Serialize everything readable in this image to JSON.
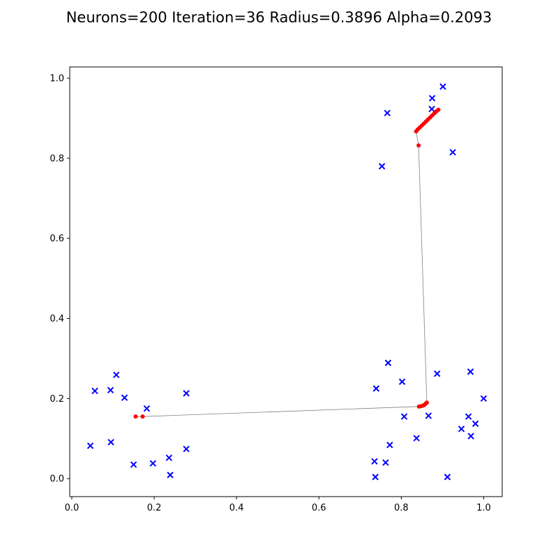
{
  "chart_data": {
    "type": "scatter",
    "title": "Neurons=200 Iteration=36 Radius=0.3896 Alpha=0.2093",
    "xlabel": "",
    "ylabel": "",
    "xlim": [
      -0.005,
      1.045
    ],
    "ylim": [
      -0.045,
      1.028
    ],
    "grid": false,
    "x_ticks": [
      {
        "value": 0.0,
        "label": "0.0"
      },
      {
        "value": 0.2,
        "label": "0.2"
      },
      {
        "value": 0.4,
        "label": "0.4"
      },
      {
        "value": 0.6,
        "label": "0.6"
      },
      {
        "value": 0.8,
        "label": "0.8"
      },
      {
        "value": 1.0,
        "label": "1.0"
      }
    ],
    "y_ticks": [
      {
        "value": 0.0,
        "label": "0.0"
      },
      {
        "value": 0.2,
        "label": "0.2"
      },
      {
        "value": 0.4,
        "label": "0.4"
      },
      {
        "value": 0.6,
        "label": "0.6"
      },
      {
        "value": 0.8,
        "label": "0.8"
      },
      {
        "value": 1.0,
        "label": "1.0"
      }
    ],
    "series": [
      {
        "name": "data points",
        "kind": "scatter",
        "marker": "x",
        "color": "#0000ff",
        "points": [
          [
            0.045,
            0.082
          ],
          [
            0.056,
            0.219
          ],
          [
            0.094,
            0.221
          ],
          [
            0.108,
            0.259
          ],
          [
            0.128,
            0.202
          ],
          [
            0.095,
            0.091
          ],
          [
            0.15,
            0.035
          ],
          [
            0.182,
            0.175
          ],
          [
            0.197,
            0.038
          ],
          [
            0.236,
            0.052
          ],
          [
            0.239,
            0.009
          ],
          [
            0.278,
            0.213
          ],
          [
            0.278,
            0.074
          ],
          [
            0.735,
            0.043
          ],
          [
            0.737,
            0.004
          ],
          [
            0.739,
            0.225
          ],
          [
            0.762,
            0.04
          ],
          [
            0.768,
            0.289
          ],
          [
            0.772,
            0.084
          ],
          [
            0.802,
            0.242
          ],
          [
            0.807,
            0.155
          ],
          [
            0.837,
            0.101
          ],
          [
            0.866,
            0.157
          ],
          [
            0.887,
            0.262
          ],
          [
            0.912,
            0.004
          ],
          [
            0.946,
            0.124
          ],
          [
            0.963,
            0.155
          ],
          [
            0.968,
            0.267
          ],
          [
            0.969,
            0.106
          ],
          [
            0.98,
            0.137
          ],
          [
            1.0,
            0.2
          ],
          [
            0.753,
            0.78
          ],
          [
            0.766,
            0.913
          ],
          [
            0.875,
            0.95
          ],
          [
            0.874,
            0.923
          ],
          [
            0.901,
            0.979
          ],
          [
            0.925,
            0.815
          ]
        ]
      },
      {
        "name": "neurons",
        "kind": "line+markers",
        "color": "#ff0000",
        "line_color": "#808080",
        "points": [
          [
            0.155,
            0.155
          ],
          [
            0.172,
            0.155
          ],
          [
            0.843,
            0.18
          ],
          [
            0.848,
            0.181
          ],
          [
            0.852,
            0.182
          ],
          [
            0.856,
            0.184
          ],
          [
            0.859,
            0.187
          ],
          [
            0.862,
            0.19
          ],
          [
            0.842,
            0.832
          ],
          [
            0.836,
            0.867
          ],
          [
            0.84,
            0.872
          ],
          [
            0.845,
            0.877
          ],
          [
            0.85,
            0.882
          ],
          [
            0.855,
            0.887
          ],
          [
            0.86,
            0.892
          ],
          [
            0.865,
            0.897
          ],
          [
            0.87,
            0.902
          ],
          [
            0.875,
            0.907
          ],
          [
            0.88,
            0.912
          ],
          [
            0.885,
            0.917
          ],
          [
            0.89,
            0.921
          ]
        ]
      }
    ]
  }
}
